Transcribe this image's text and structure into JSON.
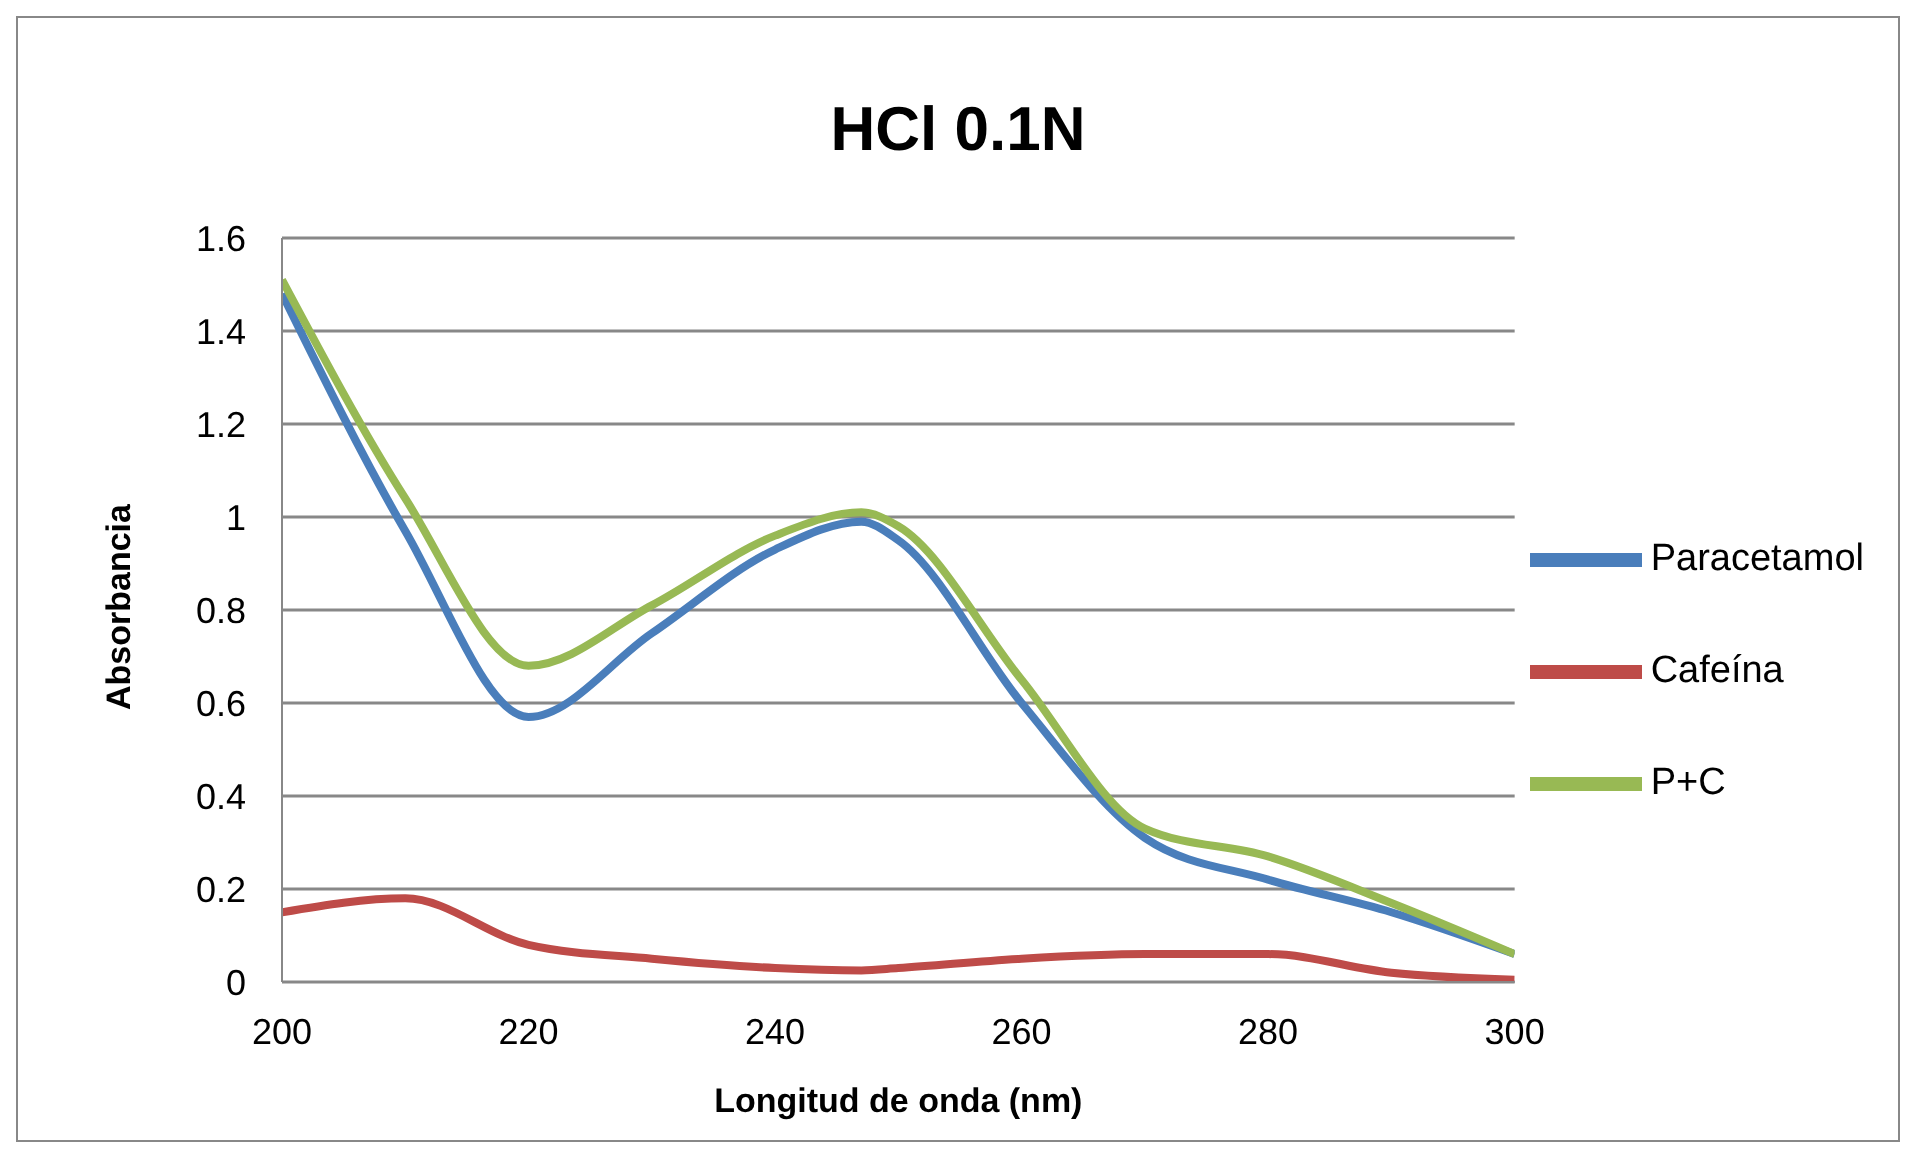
{
  "chart_data": {
    "type": "line",
    "title": "HCl 0.1N",
    "xlabel": "Longitud de onda (nm)",
    "ylabel": "Absorbancia",
    "x": [
      200,
      210,
      220,
      230,
      240,
      247,
      250,
      260,
      270,
      280,
      290,
      300
    ],
    "series": [
      {
        "name": "Paracetamol",
        "color": "#4a7ebb",
        "values": [
          1.48,
          0.97,
          0.57,
          0.75,
          0.93,
          0.99,
          0.95,
          0.6,
          0.31,
          0.22,
          0.15,
          0.06
        ]
      },
      {
        "name": "Cafeína",
        "color": "#be4b48",
        "values": [
          0.15,
          0.18,
          0.08,
          0.05,
          0.03,
          0.025,
          0.03,
          0.05,
          0.06,
          0.06,
          0.02,
          0.005
        ]
      },
      {
        "name": "P+C",
        "color": "#98b954",
        "values": [
          1.51,
          1.04,
          0.68,
          0.81,
          0.96,
          1.01,
          0.98,
          0.65,
          0.33,
          0.27,
          0.17,
          0.06
        ]
      }
    ],
    "xlim": [
      200,
      300
    ],
    "xticks": [
      200,
      220,
      240,
      260,
      280,
      300
    ],
    "ylim": [
      0,
      1.6
    ],
    "yticks": [
      0,
      0.2,
      0.4,
      0.6,
      0.8,
      1,
      1.2,
      1.4,
      1.6
    ],
    "grid": "y",
    "legend": "right",
    "marker": "none",
    "line_style": "solid"
  }
}
